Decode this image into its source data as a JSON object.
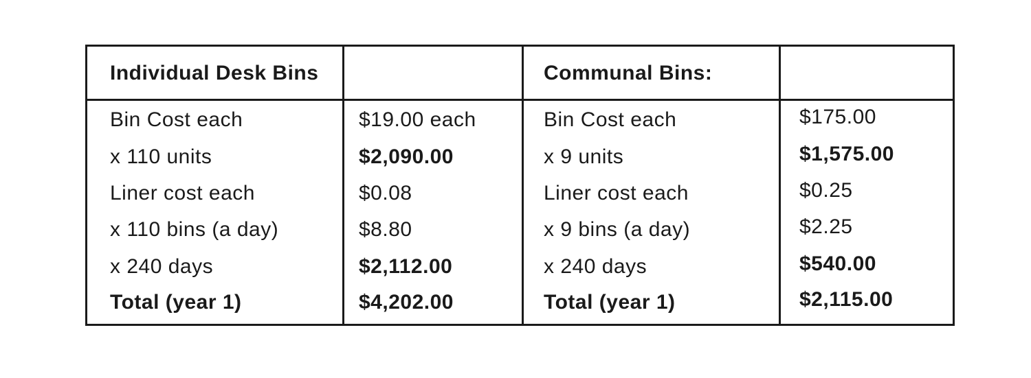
{
  "table": {
    "headers": [
      "Individual Desk Bins",
      "",
      "Communal Bins:",
      ""
    ],
    "rows": [
      {
        "left_label": "Bin Cost each",
        "left_value": "$19.00 each",
        "right_label": "Bin Cost each",
        "right_value": "$175.00",
        "bold": false
      },
      {
        "left_label": "x 110 units",
        "left_value": "$2,090.00",
        "right_label": "x 9 units",
        "right_value": "$1,575.00",
        "bold": false,
        "bold_values": true
      },
      {
        "left_label": "Liner cost each",
        "left_value": "$0.08",
        "right_label": "Liner cost each",
        "right_value": "$0.25",
        "bold": false
      },
      {
        "left_label": "x 110 bins (a day)",
        "left_value": "$8.80",
        "right_label": "x 9 bins (a day)",
        "right_value": "$2.25",
        "bold": false
      },
      {
        "left_label": "x 240 days",
        "left_value": "$2,112.00",
        "right_label": "x 240 days",
        "right_value": "$540.00",
        "bold": false,
        "bold_values": true
      },
      {
        "left_label": "Total (year 1)",
        "left_value": "$4,202.00",
        "right_label": "Total  (year 1)",
        "right_value": "$2,115.00",
        "bold": true
      }
    ]
  }
}
